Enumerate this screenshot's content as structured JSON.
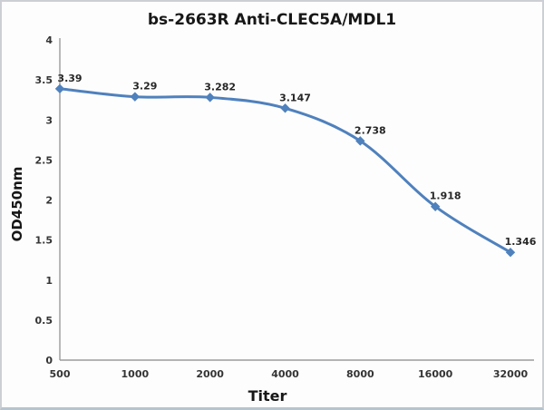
{
  "chart_data": {
    "type": "line",
    "title": "bs-2663R Anti-CLEC5A/MDL1",
    "xlabel": "Titer",
    "ylabel": "OD450nm",
    "categories": [
      "500",
      "1000",
      "2000",
      "4000",
      "8000",
      "16000",
      "32000"
    ],
    "series": [
      {
        "name": "OD450nm",
        "values": [
          3.39,
          3.29,
          3.282,
          3.147,
          2.738,
          1.918,
          1.346
        ],
        "data_labels": [
          "3.39",
          "3.29",
          "3.282",
          "3.147",
          "2.738",
          "1.918",
          "1.346"
        ]
      }
    ],
    "y_tick_labels": [
      "0",
      "0.5",
      "1",
      "1.5",
      "2",
      "2.5",
      "3",
      "3.5",
      "4"
    ],
    "ylim": [
      0,
      4
    ],
    "grid": false,
    "legend_position": "none",
    "smooth_line": true,
    "colors": {
      "line": "#4F81BD",
      "marker": "#4F81BD",
      "axis": "#9b9b9b",
      "tick_text": "#343434",
      "data_label_text": "#262626",
      "background": "#fdfdfd",
      "border": "#ccd0d4"
    }
  }
}
